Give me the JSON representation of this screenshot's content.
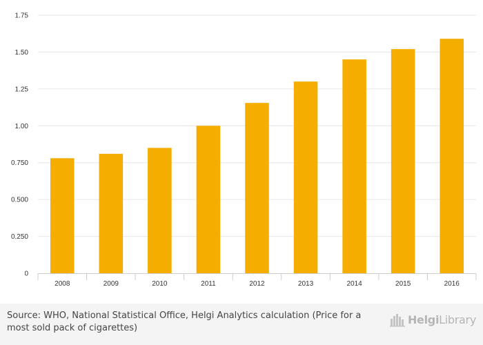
{
  "chart_data": {
    "type": "bar",
    "categories": [
      "2008",
      "2009",
      "2010",
      "2011",
      "2012",
      "2013",
      "2014",
      "2015",
      "2016"
    ],
    "values": [
      0.78,
      0.81,
      0.85,
      1.0,
      1.155,
      1.3,
      1.45,
      1.52,
      1.59
    ],
    "title": "",
    "xlabel": "",
    "ylabel": "",
    "ylim": [
      0,
      1.75
    ],
    "y_ticks": [
      "0",
      "0.250",
      "0.500",
      "0.750",
      "1.00",
      "1.25",
      "1.50",
      "1.75"
    ],
    "y_tick_values": [
      0,
      0.25,
      0.5,
      0.75,
      1.0,
      1.25,
      1.5,
      1.75
    ],
    "grid": true,
    "bar_color": "#f5ad00"
  },
  "footer": {
    "source_text": "Source: WHO, National Statistical Office, Helgi Analytics calculation (Price for a most sold pack of cigarettes)",
    "logo_text_bold": "Helgi",
    "logo_text_light": "Library",
    "logo_icon": "city-skyline-icon"
  }
}
